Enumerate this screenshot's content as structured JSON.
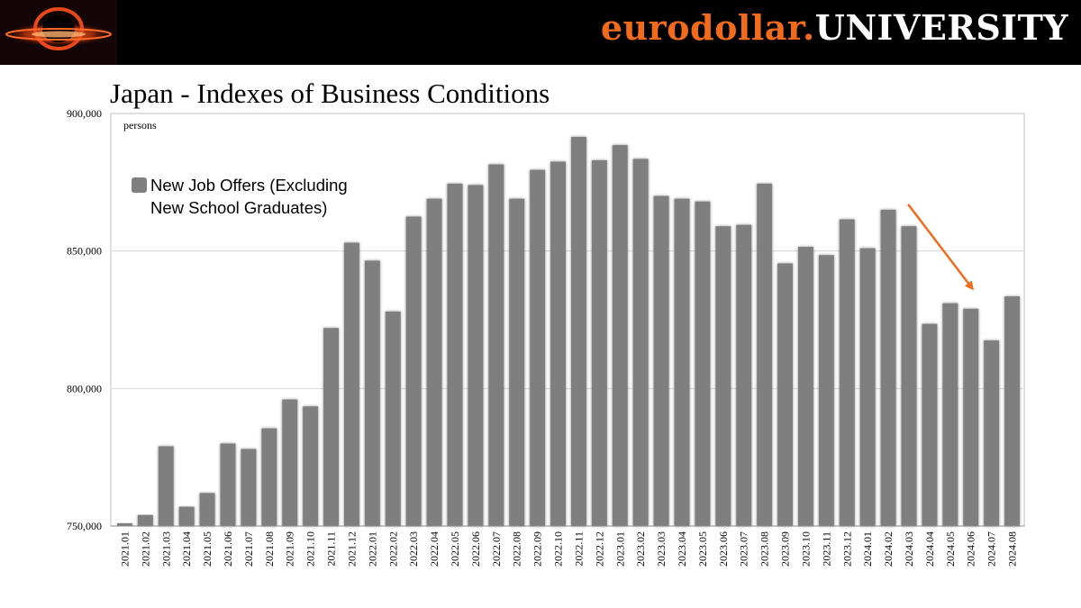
{
  "header": {
    "brand_part1": "eurodollar.",
    "brand_part2": "UNIVERSITY",
    "logo_icon": "eurodollar-logo-icon",
    "accent_color": "#f26a1b"
  },
  "chart_data": {
    "type": "bar",
    "title": "Japan - Indexes of Business Conditions",
    "unit_label": "persons",
    "legend_label": "New Job Offers (Excluding New School Graduates)",
    "legend_placement": "top-left",
    "grid": true,
    "bar_color": "#7f7f7f",
    "annotation": {
      "type": "arrow",
      "color": "#f26a1b",
      "from": "2024.02",
      "to": "2024.06"
    },
    "ylim": [
      750000,
      900000
    ],
    "yticks": [
      750000,
      800000,
      850000,
      900000
    ],
    "ytick_labels": [
      "750,000",
      "800,000",
      "850,000",
      "900,000"
    ],
    "categories": [
      "2021.01",
      "2021.02",
      "2021.03",
      "2021.04",
      "2021.05",
      "2021.06",
      "2021.07",
      "2021.08",
      "2021.09",
      "2021.10",
      "2021.11",
      "2021.12",
      "2022.01",
      "2022.02",
      "2022.03",
      "2022.04",
      "2022.05",
      "2022.06",
      "2022.07",
      "2022.08",
      "2022.09",
      "2022.10",
      "2022.11",
      "2022.12",
      "2023.01",
      "2023.02",
      "2023.03",
      "2023.04",
      "2023.05",
      "2023.06",
      "2023.07",
      "2023.08",
      "2023.09",
      "2023.10",
      "2023.11",
      "2023.12",
      "2024.01",
      "2024.02",
      "2024.03",
      "2024.04",
      "2024.05",
      "2024.06",
      "2024.07",
      "2024.08"
    ],
    "values": [
      751000,
      754000,
      779000,
      757000,
      762000,
      780000,
      778000,
      785500,
      796000,
      793500,
      822000,
      853000,
      846500,
      828000,
      862500,
      869000,
      874500,
      874000,
      881500,
      869000,
      879500,
      882500,
      891500,
      883000,
      888500,
      883500,
      870000,
      869000,
      868000,
      859000,
      859500,
      874500,
      845500,
      851500,
      848500,
      861500,
      851000,
      865000,
      859000,
      823500,
      831000,
      829000,
      817500,
      833500
    ]
  }
}
